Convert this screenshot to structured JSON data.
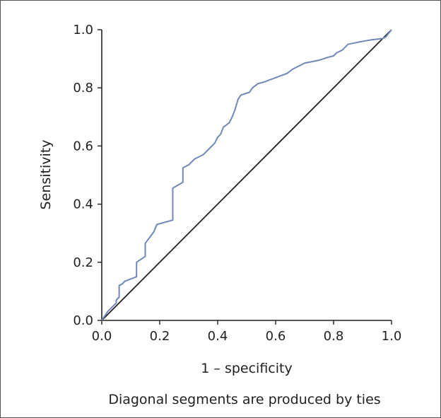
{
  "chart_data": {
    "type": "line",
    "title": "",
    "xlabel": "1 – specificity",
    "ylabel": "Sensitivity",
    "footnote": "Diagonal segments are produced by ties",
    "xlim": [
      0,
      1
    ],
    "ylim": [
      0,
      1
    ],
    "xticks": [
      "0.0",
      "0.2",
      "0.4",
      "0.6",
      "0.8",
      "1.0"
    ],
    "yticks": [
      "0.0",
      "0.2",
      "0.4",
      "0.6",
      "0.8",
      "1.0"
    ],
    "grid": false,
    "legend": "none",
    "colors": {
      "roc": "#7088b8",
      "reference": "#231f20",
      "axis": "#231f20"
    },
    "series": [
      {
        "x": [
          0,
          0.01,
          0.02,
          0.03,
          0.04,
          0.05,
          0.05,
          0.06,
          0.06,
          0.07,
          0.08,
          0.12,
          0.12,
          0.15,
          0.15,
          0.18,
          0.19,
          0.245,
          0.245,
          0.28,
          0.28,
          0.3,
          0.32,
          0.35,
          0.37,
          0.39,
          0.4,
          0.41,
          0.42,
          0.44,
          0.45,
          0.46,
          0.47,
          0.48,
          0.51,
          0.52,
          0.54,
          0.56,
          0.6,
          0.64,
          0.66,
          0.7,
          0.75,
          0.78,
          0.8,
          0.81,
          0.83,
          0.85,
          0.9,
          0.93,
          0.97,
          0.98,
          1.0
        ],
        "y": [
          0,
          0.015,
          0.03,
          0.04,
          0.05,
          0.06,
          0.07,
          0.08,
          0.12,
          0.125,
          0.135,
          0.15,
          0.2,
          0.22,
          0.265,
          0.305,
          0.33,
          0.345,
          0.455,
          0.475,
          0.525,
          0.535,
          0.555,
          0.57,
          0.59,
          0.61,
          0.63,
          0.64,
          0.665,
          0.68,
          0.7,
          0.725,
          0.76,
          0.775,
          0.785,
          0.8,
          0.815,
          0.82,
          0.835,
          0.85,
          0.865,
          0.885,
          0.895,
          0.905,
          0.91,
          0.92,
          0.93,
          0.95,
          0.96,
          0.965,
          0.97,
          0.975,
          1.0
        ]
      },
      {
        "x": [
          0,
          1
        ],
        "y": [
          0,
          1
        ]
      }
    ]
  }
}
